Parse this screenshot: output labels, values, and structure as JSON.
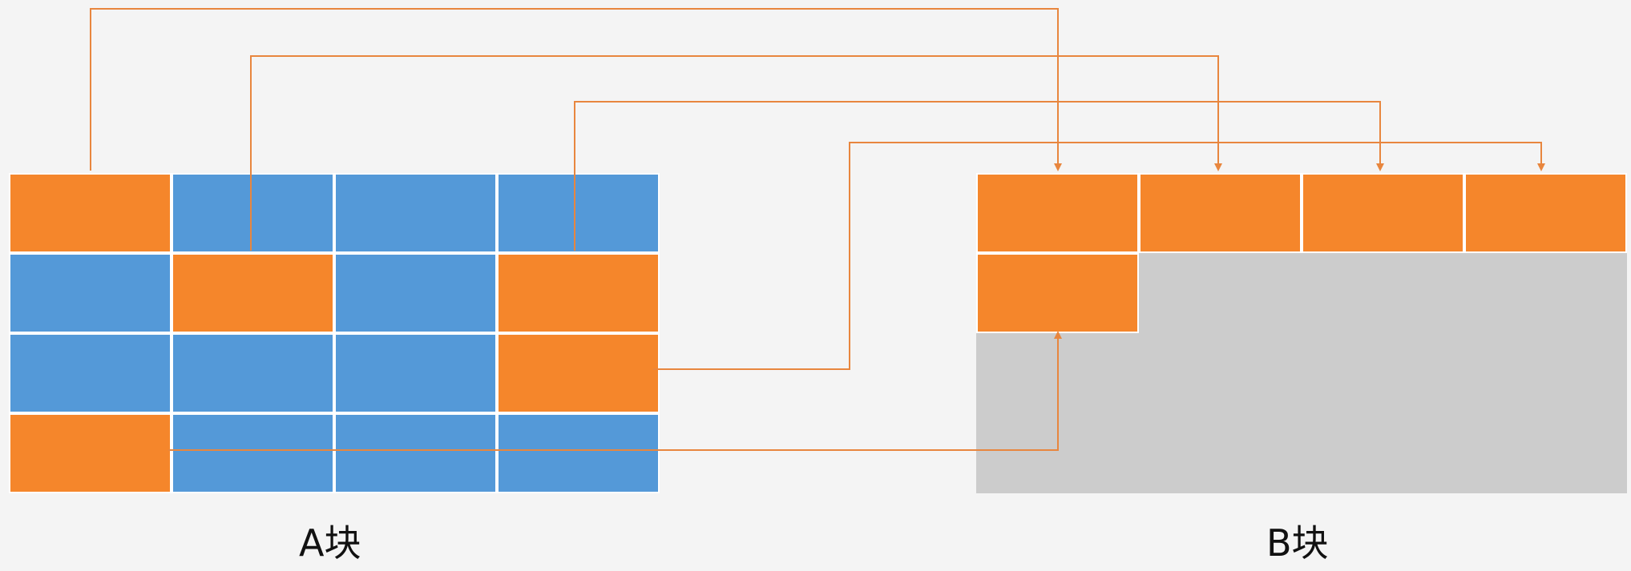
{
  "colors": {
    "background": "#f4f4f4",
    "orange": "#f5862b",
    "blue": "#5499d8",
    "gray": "#cccccc",
    "arrow": "#e8863e"
  },
  "labels": {
    "block_a": "A块",
    "block_b": "B块"
  },
  "block_a": {
    "rows": 4,
    "cols": 4,
    "cells": [
      [
        "orange",
        "blue",
        "blue",
        "blue"
      ],
      [
        "blue",
        "orange",
        "blue",
        "orange"
      ],
      [
        "blue",
        "blue",
        "blue",
        "orange"
      ],
      [
        "orange",
        "blue",
        "blue",
        "blue"
      ]
    ]
  },
  "block_b": {
    "rows": 4,
    "cols": 4,
    "filled_cells": [
      [
        0,
        0
      ],
      [
        0,
        1
      ],
      [
        0,
        2
      ],
      [
        0,
        3
      ],
      [
        1,
        0
      ]
    ]
  },
  "mappings": [
    {
      "from": [
        0,
        0
      ],
      "to": [
        0,
        0
      ]
    },
    {
      "from": [
        1,
        1
      ],
      "to": [
        0,
        1
      ]
    },
    {
      "from": [
        1,
        3
      ],
      "to": [
        0,
        2
      ]
    },
    {
      "from": [
        2,
        3
      ],
      "to": [
        0,
        3
      ]
    },
    {
      "from": [
        3,
        0
      ],
      "to": [
        1,
        0
      ]
    }
  ]
}
